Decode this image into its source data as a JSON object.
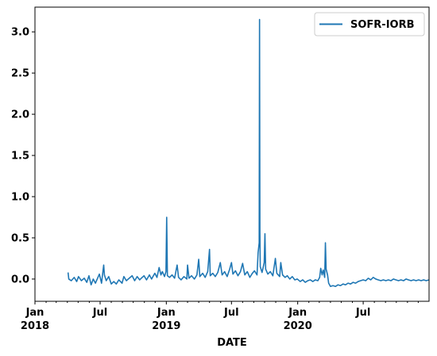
{
  "chart_data": {
    "type": "line",
    "title": "",
    "xlabel": "DATE",
    "ylabel": "",
    "ylim": [
      -0.27,
      3.3
    ],
    "xlim": [
      "2018-01-01",
      "2020-12-31"
    ],
    "grid": false,
    "legend_position": "top-right",
    "yticks": [
      {
        "value": 0.0,
        "label": "0.0"
      },
      {
        "value": 0.5,
        "label": "0.5"
      },
      {
        "value": 1.0,
        "label": "1.0"
      },
      {
        "value": 1.5,
        "label": "1.5"
      },
      {
        "value": 2.0,
        "label": "2.0"
      },
      {
        "value": 2.5,
        "label": "2.5"
      },
      {
        "value": 3.0,
        "label": "3.0"
      }
    ],
    "xticks": [
      {
        "date": "2018-01-01",
        "label": "Jan",
        "sublabel": "2018"
      },
      {
        "date": "2018-07-01",
        "label": "Jul",
        "sublabel": ""
      },
      {
        "date": "2019-01-01",
        "label": "Jan",
        "sublabel": "2019"
      },
      {
        "date": "2019-07-01",
        "label": "Jul",
        "sublabel": ""
      },
      {
        "date": "2020-01-01",
        "label": "Jan",
        "sublabel": "2020"
      },
      {
        "date": "2020-07-01",
        "label": "Jul",
        "sublabel": ""
      }
    ],
    "series": [
      {
        "name": "SOFR-IORB",
        "color": "#1f77b4",
        "points": [
          [
            "2018-04-03",
            0.08
          ],
          [
            "2018-04-05",
            0.0
          ],
          [
            "2018-04-12",
            -0.02
          ],
          [
            "2018-04-20",
            0.02
          ],
          [
            "2018-04-27",
            -0.03
          ],
          [
            "2018-05-02",
            0.03
          ],
          [
            "2018-05-10",
            -0.02
          ],
          [
            "2018-05-18",
            0.01
          ],
          [
            "2018-05-25",
            -0.04
          ],
          [
            "2018-05-31",
            0.04
          ],
          [
            "2018-06-06",
            -0.07
          ],
          [
            "2018-06-12",
            0.0
          ],
          [
            "2018-06-18",
            -0.05
          ],
          [
            "2018-06-25",
            0.02
          ],
          [
            "2018-06-29",
            0.06
          ],
          [
            "2018-07-05",
            -0.05
          ],
          [
            "2018-07-11",
            0.17
          ],
          [
            "2018-07-13",
            0.05
          ],
          [
            "2018-07-18",
            -0.02
          ],
          [
            "2018-07-25",
            0.03
          ],
          [
            "2018-08-01",
            -0.06
          ],
          [
            "2018-08-08",
            -0.03
          ],
          [
            "2018-08-15",
            -0.06
          ],
          [
            "2018-08-22",
            -0.01
          ],
          [
            "2018-08-31",
            -0.05
          ],
          [
            "2018-09-05",
            0.03
          ],
          [
            "2018-09-12",
            -0.02
          ],
          [
            "2018-09-20",
            0.01
          ],
          [
            "2018-09-28",
            0.04
          ],
          [
            "2018-10-05",
            -0.02
          ],
          [
            "2018-10-12",
            0.03
          ],
          [
            "2018-10-19",
            -0.01
          ],
          [
            "2018-10-26",
            0.02
          ],
          [
            "2018-10-31",
            0.04
          ],
          [
            "2018-11-07",
            -0.01
          ],
          [
            "2018-11-15",
            0.05
          ],
          [
            "2018-11-21",
            0.0
          ],
          [
            "2018-11-30",
            0.07
          ],
          [
            "2018-12-06",
            0.02
          ],
          [
            "2018-12-12",
            0.14
          ],
          [
            "2018-12-17",
            0.05
          ],
          [
            "2018-12-21",
            0.09
          ],
          [
            "2018-12-27",
            0.03
          ],
          [
            "2018-12-31",
            0.09
          ],
          [
            "2019-01-02",
            0.75
          ],
          [
            "2019-01-04",
            0.04
          ],
          [
            "2019-01-10",
            0.02
          ],
          [
            "2019-01-17",
            0.05
          ],
          [
            "2019-01-24",
            0.01
          ],
          [
            "2019-01-31",
            0.17
          ],
          [
            "2019-02-04",
            0.02
          ],
          [
            "2019-02-11",
            -0.01
          ],
          [
            "2019-02-19",
            0.03
          ],
          [
            "2019-02-27",
            0.0
          ],
          [
            "2019-03-01",
            0.17
          ],
          [
            "2019-03-05",
            0.01
          ],
          [
            "2019-03-12",
            0.04
          ],
          [
            "2019-03-20",
            0.0
          ],
          [
            "2019-03-27",
            0.05
          ],
          [
            "2019-04-01",
            0.24
          ],
          [
            "2019-04-04",
            0.03
          ],
          [
            "2019-04-12",
            0.07
          ],
          [
            "2019-04-19",
            0.02
          ],
          [
            "2019-04-26",
            0.09
          ],
          [
            "2019-05-01",
            0.36
          ],
          [
            "2019-05-03",
            0.04
          ],
          [
            "2019-05-10",
            0.07
          ],
          [
            "2019-05-17",
            0.03
          ],
          [
            "2019-05-24",
            0.08
          ],
          [
            "2019-05-31",
            0.2
          ],
          [
            "2019-06-05",
            0.05
          ],
          [
            "2019-06-12",
            0.09
          ],
          [
            "2019-06-19",
            0.03
          ],
          [
            "2019-06-26",
            0.12
          ],
          [
            "2019-07-01",
            0.2
          ],
          [
            "2019-07-05",
            0.06
          ],
          [
            "2019-07-12",
            0.1
          ],
          [
            "2019-07-19",
            0.04
          ],
          [
            "2019-07-26",
            0.09
          ],
          [
            "2019-08-01",
            0.19
          ],
          [
            "2019-08-07",
            0.05
          ],
          [
            "2019-08-14",
            0.09
          ],
          [
            "2019-08-21",
            0.02
          ],
          [
            "2019-08-28",
            0.07
          ],
          [
            "2019-09-03",
            0.1
          ],
          [
            "2019-09-10",
            0.05
          ],
          [
            "2019-09-13",
            0.32
          ],
          [
            "2019-09-16",
            0.44
          ],
          [
            "2019-09-17",
            3.15
          ],
          [
            "2019-09-18",
            0.57
          ],
          [
            "2019-09-19",
            0.15
          ],
          [
            "2019-09-24",
            0.08
          ],
          [
            "2019-09-30",
            0.2
          ],
          [
            "2019-10-02",
            0.55
          ],
          [
            "2019-10-04",
            0.12
          ],
          [
            "2019-10-10",
            0.06
          ],
          [
            "2019-10-17",
            0.09
          ],
          [
            "2019-10-24",
            0.04
          ],
          [
            "2019-10-31",
            0.25
          ],
          [
            "2019-11-04",
            0.07
          ],
          [
            "2019-11-12",
            0.03
          ],
          [
            "2019-11-15",
            0.2
          ],
          [
            "2019-11-20",
            0.05
          ],
          [
            "2019-11-27",
            0.02
          ],
          [
            "2019-12-03",
            0.04
          ],
          [
            "2019-12-10",
            0.0
          ],
          [
            "2019-12-17",
            0.03
          ],
          [
            "2019-12-24",
            -0.01
          ],
          [
            "2019-12-31",
            0.0
          ],
          [
            "2020-01-08",
            -0.03
          ],
          [
            "2020-01-15",
            -0.01
          ],
          [
            "2020-01-22",
            -0.04
          ],
          [
            "2020-01-29",
            -0.02
          ],
          [
            "2020-02-05",
            -0.01
          ],
          [
            "2020-02-12",
            -0.03
          ],
          [
            "2020-02-19",
            -0.01
          ],
          [
            "2020-02-26",
            -0.02
          ],
          [
            "2020-03-02",
            0.02
          ],
          [
            "2020-03-05",
            0.13
          ],
          [
            "2020-03-09",
            0.05
          ],
          [
            "2020-03-12",
            0.11
          ],
          [
            "2020-03-16",
            0.02
          ],
          [
            "2020-03-18",
            0.44
          ],
          [
            "2020-03-20",
            0.12
          ],
          [
            "2020-03-24",
            0.05
          ],
          [
            "2020-03-27",
            -0.05
          ],
          [
            "2020-04-01",
            -0.09
          ],
          [
            "2020-04-08",
            -0.08
          ],
          [
            "2020-04-15",
            -0.09
          ],
          [
            "2020-04-22",
            -0.07
          ],
          [
            "2020-04-29",
            -0.08
          ],
          [
            "2020-05-06",
            -0.06
          ],
          [
            "2020-05-13",
            -0.07
          ],
          [
            "2020-05-20",
            -0.05
          ],
          [
            "2020-05-27",
            -0.06
          ],
          [
            "2020-06-03",
            -0.04
          ],
          [
            "2020-06-10",
            -0.05
          ],
          [
            "2020-06-17",
            -0.03
          ],
          [
            "2020-06-24",
            -0.02
          ],
          [
            "2020-07-01",
            -0.01
          ],
          [
            "2020-07-08",
            -0.02
          ],
          [
            "2020-07-15",
            0.01
          ],
          [
            "2020-07-22",
            -0.01
          ],
          [
            "2020-07-29",
            0.02
          ],
          [
            "2020-08-05",
            0.0
          ],
          [
            "2020-08-12",
            -0.01
          ],
          [
            "2020-08-19",
            -0.02
          ],
          [
            "2020-08-26",
            -0.01
          ],
          [
            "2020-09-02",
            -0.02
          ],
          [
            "2020-09-09",
            -0.01
          ],
          [
            "2020-09-16",
            -0.02
          ],
          [
            "2020-09-23",
            0.0
          ],
          [
            "2020-09-30",
            -0.01
          ],
          [
            "2020-10-07",
            -0.02
          ],
          [
            "2020-10-14",
            -0.01
          ],
          [
            "2020-10-21",
            -0.02
          ],
          [
            "2020-10-28",
            0.0
          ],
          [
            "2020-11-04",
            -0.01
          ],
          [
            "2020-11-11",
            -0.02
          ],
          [
            "2020-11-18",
            -0.01
          ],
          [
            "2020-11-25",
            -0.02
          ],
          [
            "2020-12-02",
            -0.01
          ],
          [
            "2020-12-09",
            -0.02
          ],
          [
            "2020-12-16",
            -0.01
          ],
          [
            "2020-12-23",
            -0.02
          ],
          [
            "2020-12-31",
            -0.01
          ]
        ]
      }
    ]
  }
}
